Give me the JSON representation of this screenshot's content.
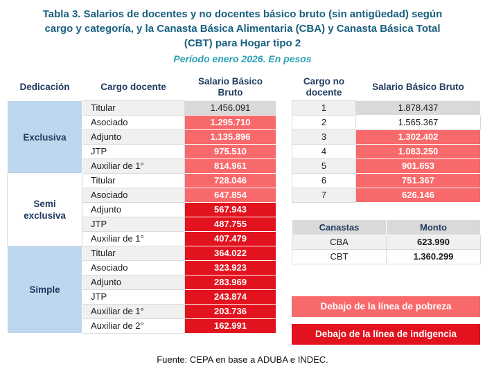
{
  "colors": {
    "title": "#19607f",
    "subtitle": "#2aa0b5",
    "header_text": "#1f3a5f",
    "pobreza": "#f8696b",
    "indigencia": "#e2131e",
    "neutral": "#d9d9d9",
    "dedicacion": "#bdd7ee",
    "stripe": "#f0f0f0"
  },
  "title": {
    "lines": [
      "Tabla 3. Salarios de docentes y no docentes básico bruto (sin antigüedad) según",
      "cargo y categoría, y la Canasta Básica Alimentaria (CBA) y Canasta Básica Total",
      "(CBT) para Hogar tipo 2"
    ],
    "subtitle": "Período enero 2026. En pesos"
  },
  "docente_table": {
    "headers": [
      "Dedicación",
      "Cargo docente",
      "Salario Básico Bruto"
    ],
    "groups": [
      {
        "dedicacion": "Exclusiva",
        "rows": [
          {
            "cargo": "Titular",
            "salario": "1.456.091",
            "level": "neutral"
          },
          {
            "cargo": "Asociado",
            "salario": "1.295.710",
            "level": "pobreza"
          },
          {
            "cargo": "Adjunto",
            "salario": "1.135.896",
            "level": "pobreza"
          },
          {
            "cargo": "JTP",
            "salario": "975.510",
            "level": "pobreza"
          },
          {
            "cargo": "Auxiliar de 1°",
            "salario": "814.961",
            "level": "pobreza"
          }
        ]
      },
      {
        "dedicacion": "Semi exclusiva",
        "rows": [
          {
            "cargo": "Titular",
            "salario": "728.046",
            "level": "pobreza"
          },
          {
            "cargo": "Asociado",
            "salario": "647.854",
            "level": "pobreza"
          },
          {
            "cargo": "Adjunto",
            "salario": "567.943",
            "level": "indigencia"
          },
          {
            "cargo": "JTP",
            "salario": "487.755",
            "level": "indigencia"
          },
          {
            "cargo": "Auxiliar de 1°",
            "salario": "407.479",
            "level": "indigencia"
          }
        ]
      },
      {
        "dedicacion": "Simple",
        "rows": [
          {
            "cargo": "Titular",
            "salario": "364.022",
            "level": "indigencia"
          },
          {
            "cargo": "Asociado",
            "salario": "323.923",
            "level": "indigencia"
          },
          {
            "cargo": "Adjunto",
            "salario": "283.969",
            "level": "indigencia"
          },
          {
            "cargo": "JTP",
            "salario": "243.874",
            "level": "indigencia"
          },
          {
            "cargo": "Auxiliar de 1°",
            "salario": "203.736",
            "level": "indigencia"
          },
          {
            "cargo": "Auxiliar de 2°",
            "salario": "162.991",
            "level": "indigencia"
          }
        ]
      }
    ]
  },
  "nodocente_table": {
    "headers": [
      "Cargo no docente",
      "Salario Básico Bruto"
    ],
    "rows": [
      {
        "categoria": "1",
        "salario": "1.878.437",
        "level": "neutral"
      },
      {
        "categoria": "2",
        "salario": "1.565.367",
        "level": "plain"
      },
      {
        "categoria": "3",
        "salario": "1.302.402",
        "level": "pobreza"
      },
      {
        "categoria": "4",
        "salario": "1.083.250",
        "level": "pobreza"
      },
      {
        "categoria": "5",
        "salario": "901.653",
        "level": "pobreza"
      },
      {
        "categoria": "6",
        "salario": "751.367",
        "level": "pobreza"
      },
      {
        "categoria": "7",
        "salario": "626.146",
        "level": "pobreza"
      }
    ]
  },
  "canastas_table": {
    "headers": [
      "Canastas",
      "Monto"
    ],
    "rows": [
      {
        "nombre": "CBA",
        "monto": "623.990"
      },
      {
        "nombre": "CBT",
        "monto": "1.360.299"
      }
    ]
  },
  "legend": [
    {
      "label": "Debajo de la línea de pobreza",
      "level": "pobreza"
    },
    {
      "label": "Debajo de la línea de indigencia",
      "level": "indigencia"
    }
  ],
  "footer": {
    "text": "Fuente: CEPA en base a ADUBA e INDEC."
  },
  "chart_data": {
    "type": "table",
    "title": "Salarios básicos brutos (sin antigüedad) vs CBA y CBT, Hogar tipo 2, enero 2026",
    "tables": [
      {
        "name": "docentes",
        "columns": [
          "Dedicación",
          "Cargo docente",
          "Salario Básico Bruto"
        ],
        "rows": [
          [
            "Exclusiva",
            "Titular",
            1456091
          ],
          [
            "Exclusiva",
            "Asociado",
            1295710
          ],
          [
            "Exclusiva",
            "Adjunto",
            1135896
          ],
          [
            "Exclusiva",
            "JTP",
            975510
          ],
          [
            "Exclusiva",
            "Auxiliar de 1°",
            814961
          ],
          [
            "Semi exclusiva",
            "Titular",
            728046
          ],
          [
            "Semi exclusiva",
            "Asociado",
            647854
          ],
          [
            "Semi exclusiva",
            "Adjunto",
            567943
          ],
          [
            "Semi exclusiva",
            "JTP",
            487755
          ],
          [
            "Semi exclusiva",
            "Auxiliar de 1°",
            407479
          ],
          [
            "Simple",
            "Titular",
            364022
          ],
          [
            "Simple",
            "Asociado",
            323923
          ],
          [
            "Simple",
            "Adjunto",
            283969
          ],
          [
            "Simple",
            "JTP",
            243874
          ],
          [
            "Simple",
            "Auxiliar de 1°",
            203736
          ],
          [
            "Simple",
            "Auxiliar de 2°",
            162991
          ]
        ]
      },
      {
        "name": "no_docentes",
        "columns": [
          "Cargo no docente",
          "Salario Básico Bruto"
        ],
        "rows": [
          [
            1,
            1878437
          ],
          [
            2,
            1565367
          ],
          [
            3,
            1302402
          ],
          [
            4,
            1083250
          ],
          [
            5,
            901653
          ],
          [
            6,
            751367
          ],
          [
            7,
            626146
          ]
        ]
      },
      {
        "name": "canastas",
        "columns": [
          "Canastas",
          "Monto"
        ],
        "rows": [
          [
            "CBA",
            623990
          ],
          [
            "CBT",
            1360299
          ]
        ]
      }
    ]
  }
}
